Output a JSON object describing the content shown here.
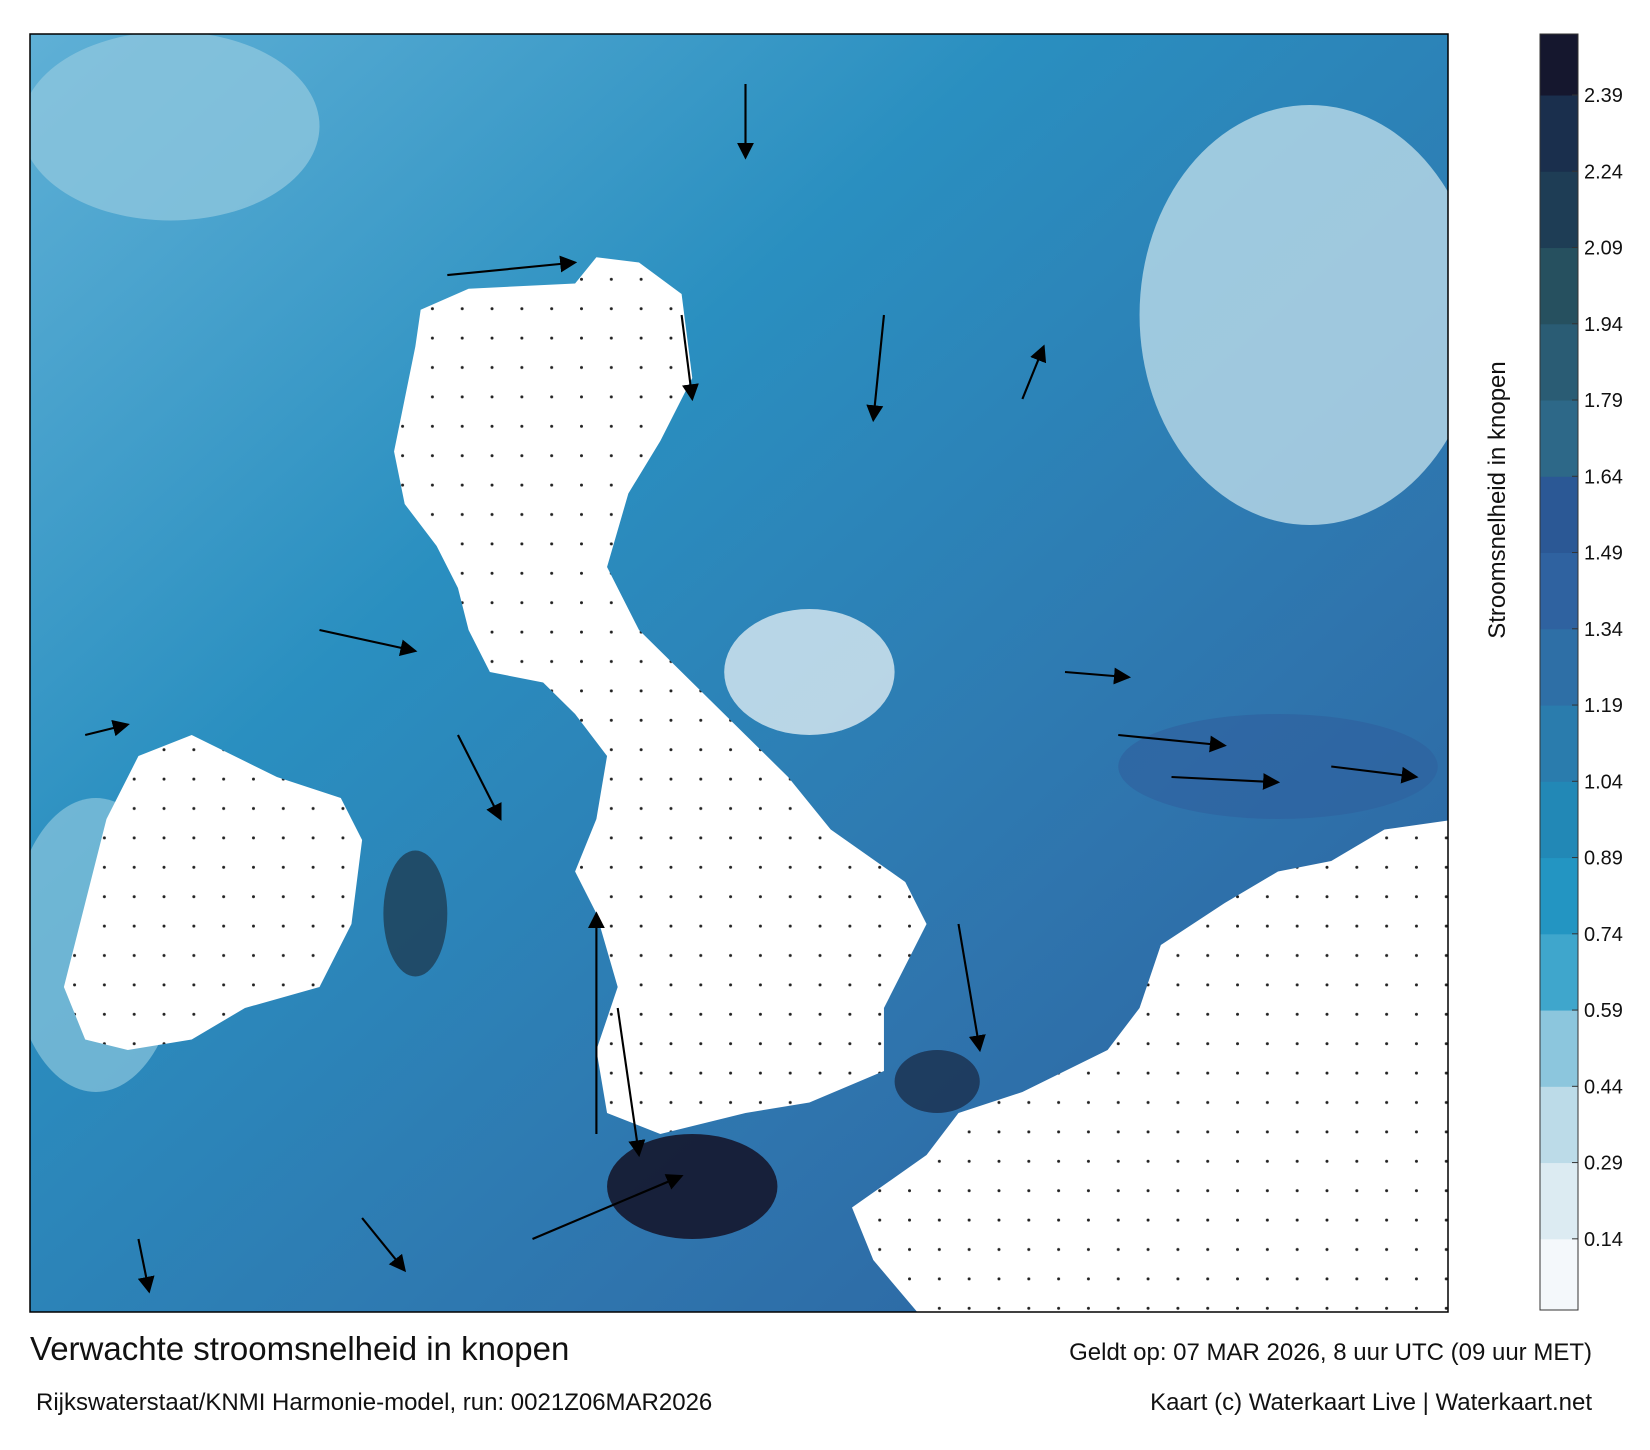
{
  "title": "Verwachte stroomsnelheid in knopen",
  "subtitle": "Rijkswaterstaat/KNMI Harmonie-model, run: 0021Z06MAR2026",
  "valid": "Geldt op: 07 MAR 2026, 8 uur UTC (09 uur MET)",
  "credit": "Kaart (c) Waterkaart Live | Waterkaart.net",
  "colorbar": {
    "label": "Stroomsnelheid in knopen",
    "lim": [
      0,
      2.51
    ],
    "ticks": [
      0.14,
      0.29,
      0.44,
      0.59,
      0.74,
      0.89,
      1.04,
      1.19,
      1.34,
      1.49,
      1.64,
      1.79,
      1.94,
      2.09,
      2.24,
      2.39
    ],
    "colors": [
      "#f4f8fb",
      "#dcebf2",
      "#bcdbe8",
      "#8cc6dd",
      "#3fa6cc",
      "#2395c2",
      "#2288b6",
      "#2a7cad",
      "#2e6fa6",
      "#2f62a0",
      "#2b5895",
      "#2d6888",
      "#2a5c74",
      "#26505f",
      "#1e3d55",
      "#1a2f4d",
      "#15172e"
    ]
  }
}
